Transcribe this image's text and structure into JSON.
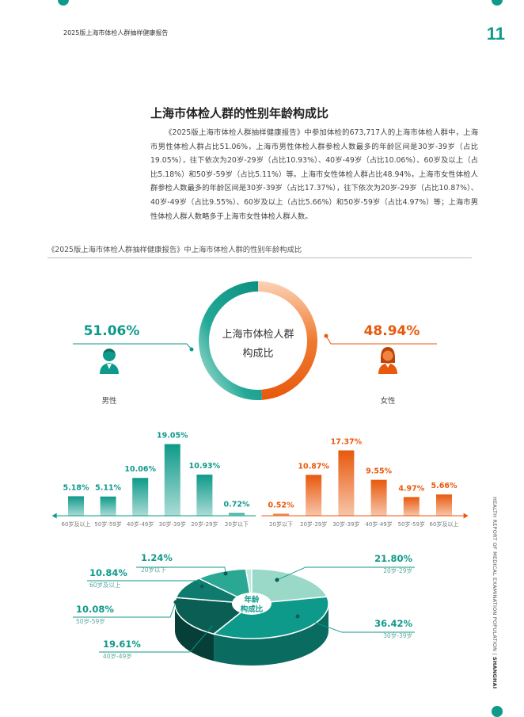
{
  "header": {
    "report": "2025版上海市体检人群抽样健康报告",
    "page": "11"
  },
  "section_title": "上海市体检人群的性别年龄构成比",
  "paragraph": "《2025版上海市体检人群抽样健康报告》中参加体检的673,717人的上海市体检人群中，上海市男性体检人群占比51.06%，上海市男性体检人群参检人数最多的年龄区间是30岁-39岁（占比19.05%），往下依次为20岁-29岁（占比10.93%）、40岁-49岁（占比10.06%）、60岁及以上（占比5.18%）和50岁-59岁（占比5.11%）等。上海市女性体检人群占比48.94%，上海市女性体检人群参检人数最多的年龄区间是30岁-39岁（占比17.37%），往下依次为20岁-29岁（占比10.87%）、40岁-49岁（占比9.55%）、60岁及以上（占比5.66%）和50岁-59岁（占比4.97%）等；上海市男性体检人群人数略多于上海市女性体检人群人数。",
  "figure_caption": "《2025版上海市体检人群抽样健康报告》中上海市体检人群的性别年龄构成比",
  "side_text": {
    "bold": "SHANGHAI",
    "rest": "HEALTH REPORT OF MEDICAL EXAMINATION POPULATION  |  "
  },
  "colors": {
    "teal": "#0e9a8a",
    "orange": "#e8590c",
    "dark_teal": "#0b5e54",
    "light_teal": "#9ad8c8"
  },
  "chart_data": [
    {
      "type": "pie",
      "title": "上海市体检人群构成比",
      "title_lines": [
        "上海市体检人群",
        "构成比"
      ],
      "slices": [
        {
          "label": "男性",
          "value": 51.06,
          "display": "51.06%",
          "color": "#0e9a8a",
          "icon": "male-person-icon"
        },
        {
          "label": "女性",
          "value": 48.94,
          "display": "48.94%",
          "color": "#e8590c",
          "icon": "female-person-icon"
        }
      ]
    },
    {
      "type": "bar",
      "series_name": "男性",
      "categories": [
        "60岁及以上",
        "50岁-59岁",
        "40岁-49岁",
        "30岁-39岁",
        "20岁-29岁",
        "20岁以下"
      ],
      "values": [
        5.18,
        5.11,
        10.06,
        19.05,
        10.93,
        0.72
      ],
      "labels": [
        "5.18%",
        "5.11%",
        "10.06%",
        "19.05%",
        "10.93%",
        "0.72%"
      ],
      "color": "#0e9a8a",
      "ylim": [
        0,
        20
      ]
    },
    {
      "type": "bar",
      "series_name": "女性",
      "categories": [
        "20岁以下",
        "20岁-29岁",
        "30岁-39岁",
        "40岁-49岁",
        "50岁-59岁",
        "60岁及以上"
      ],
      "values": [
        0.52,
        10.87,
        17.37,
        9.55,
        4.97,
        5.66
      ],
      "labels": [
        "0.52%",
        "10.87%",
        "17.37%",
        "9.55%",
        "4.97%",
        "5.66%"
      ],
      "color": "#e8590c",
      "ylim": [
        0,
        20
      ]
    },
    {
      "type": "pie",
      "title": "年龄构成比",
      "title_lines": [
        "年龄",
        "构成比"
      ],
      "slices": [
        {
          "label": "20岁以下",
          "value": 1.24,
          "display": "1.24%",
          "color": "#bfe9dc"
        },
        {
          "label": "20岁-29岁",
          "value": 21.8,
          "display": "21.80%",
          "color": "#9ad8c8"
        },
        {
          "label": "30岁-39岁",
          "value": 36.42,
          "display": "36.42%",
          "color": "#0e9a8a"
        },
        {
          "label": "40岁-49岁",
          "value": 19.61,
          "display": "19.61%",
          "color": "#0b5e54"
        },
        {
          "label": "50岁-59岁",
          "value": 10.08,
          "display": "10.08%",
          "color": "#0f7a6e"
        },
        {
          "label": "60岁及以上",
          "value": 10.84,
          "display": "10.84%",
          "color": "#2aa894"
        }
      ]
    }
  ]
}
